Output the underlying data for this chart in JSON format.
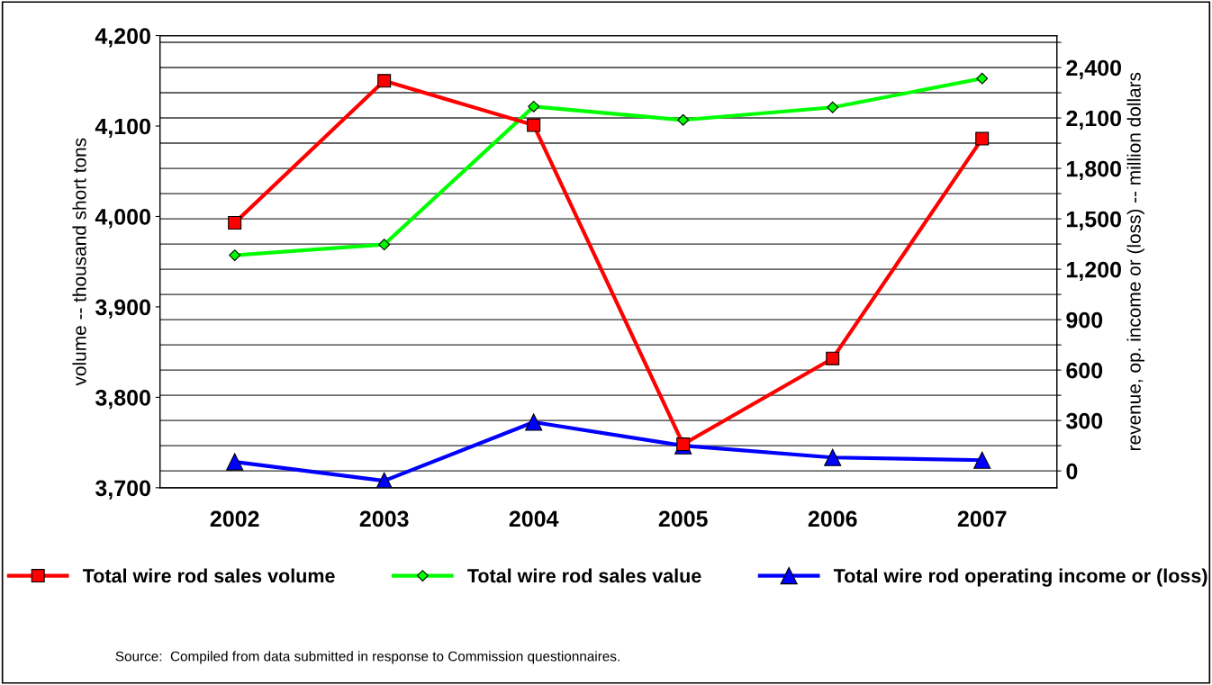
{
  "chart_data": {
    "type": "line",
    "categories": [
      "2002",
      "2003",
      "2004",
      "2005",
      "2006",
      "2007"
    ],
    "ylabel": "volume -- thousand short tons",
    "y2label": "revenue, op. income or (loss) -- million dollars",
    "ylim": [
      3700,
      4200
    ],
    "yticks": [
      {
        "value": 3700,
        "label": "3,700"
      },
      {
        "value": 3800,
        "label": "3,800"
      },
      {
        "value": 3900,
        "label": "3,900"
      },
      {
        "value": 4000,
        "label": "4,000"
      },
      {
        "value": 4100,
        "label": "4,100"
      },
      {
        "value": 4200,
        "label": "4,200"
      }
    ],
    "y2lim": [
      -100,
      2590
    ],
    "y2ticks": [
      0,
      {
        "value": 150,
        "label": null
      },
      300,
      {
        "value": 450,
        "label": null
      },
      600,
      {
        "value": 750,
        "label": null
      },
      900,
      {
        "value": 1050,
        "label": null
      },
      {
        "value": 1200,
        "label": "1,200"
      },
      {
        "value": 1350,
        "label": null
      },
      {
        "value": 1500,
        "label": "1,500"
      },
      {
        "value": 1650,
        "label": null
      },
      {
        "value": 1800,
        "label": "1,800"
      },
      {
        "value": 1950,
        "label": null
      },
      {
        "value": 2100,
        "label": "2,100"
      },
      {
        "value": 2250,
        "label": null
      },
      {
        "value": 2400,
        "label": "2,400"
      },
      {
        "value": 2550,
        "label": null
      }
    ],
    "grid": "y2",
    "legend": "bottom",
    "line_style": "solid",
    "series": [
      {
        "name": "Total wire rod sales volume",
        "color": "#ff0000",
        "marker": "square",
        "values": [
          3993,
          4150,
          4101,
          3748,
          3843,
          4086
        ]
      },
      {
        "name": "Total wire rod sales value",
        "color": "#00ff00",
        "marker": "diamond",
        "axis": "y2",
        "values": [
          1283,
          1347,
          2168,
          2088,
          2163,
          2335
        ]
      },
      {
        "name": "Total wire rod operating income or (loss)",
        "color": "#0000ff",
        "marker": "triangle",
        "axis": "y2",
        "values": [
          54,
          -59,
          290,
          150,
          80,
          64
        ]
      }
    ],
    "annotations": [
      "Source:  Compiled from data submitted in response to Commission questionnaires."
    ]
  }
}
